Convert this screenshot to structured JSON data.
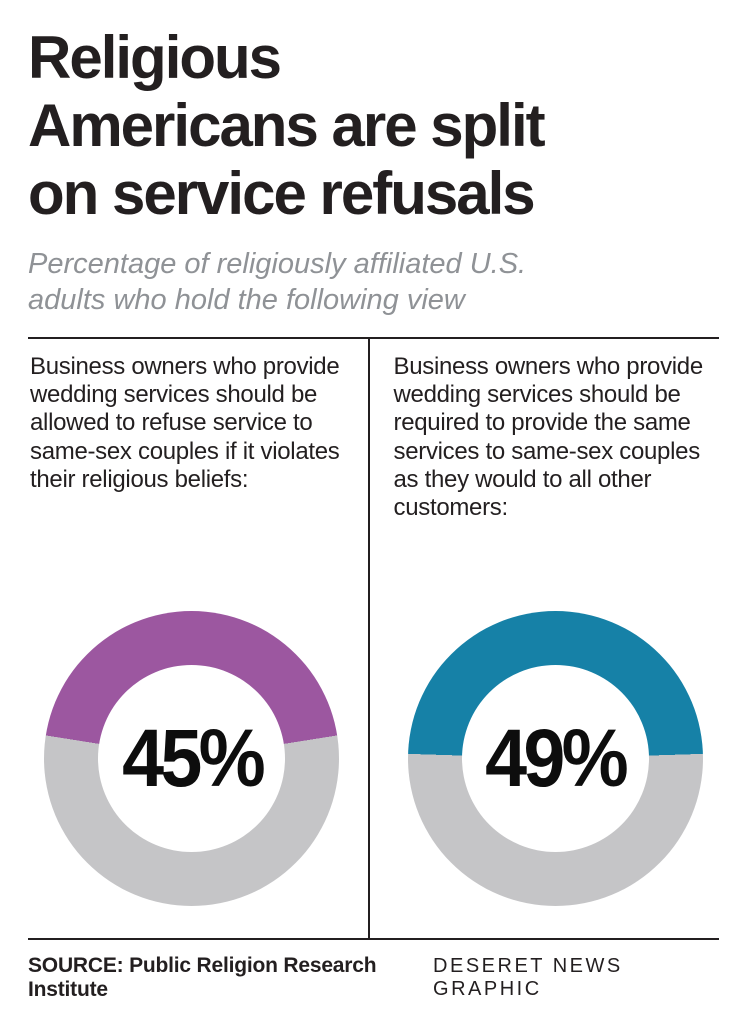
{
  "header": {
    "title_lines": [
      "Religious",
      "Americans are split",
      "on service refusals"
    ],
    "subtitle_lines": [
      "Percentage of religiously affiliated U.S.",
      "adults who hold the following view"
    ]
  },
  "chart_data": [
    {
      "type": "pie",
      "style": "donut",
      "label": "Business owners who provide wedding services should be allowed to refuse service to same-sex couples if it violates their religious beliefs:",
      "value": 45,
      "unit": "%",
      "display": "45%",
      "color": "#9c57a0",
      "remainder_color": "#c5c5c7",
      "arc_alignment": "top-centered"
    },
    {
      "type": "pie",
      "style": "donut",
      "label": "Business owners who provide wedding services should be required to provide the same services to same-sex couples as they would to all other customers:",
      "value": 49,
      "unit": "%",
      "display": "49%",
      "color": "#1681a7",
      "remainder_color": "#c5c5c7",
      "arc_alignment": "top-centered"
    }
  ],
  "footer": {
    "source_label": "SOURCE:",
    "source_text": "Public Religion Research Institute",
    "credit": "DESERET NEWS GRAPHIC"
  }
}
